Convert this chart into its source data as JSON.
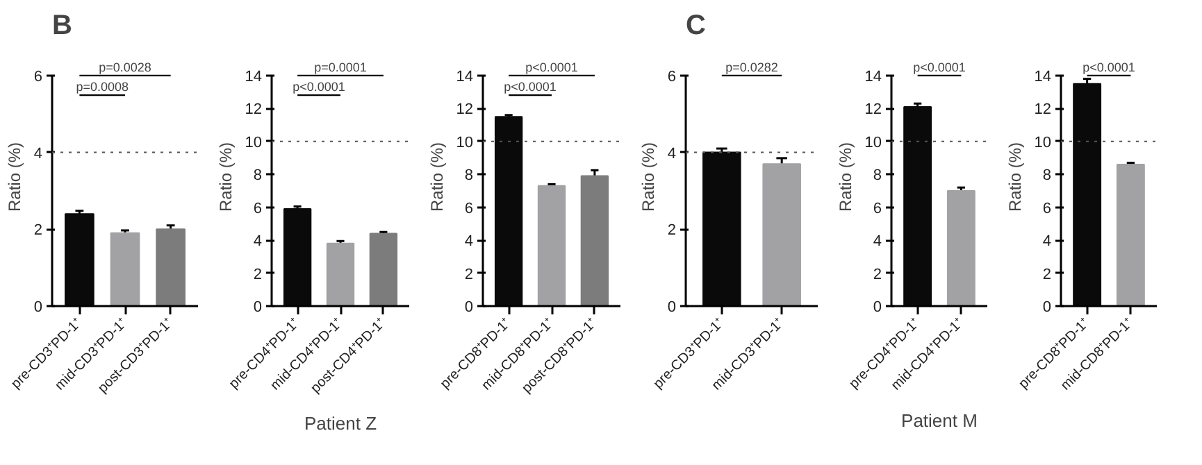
{
  "chart_data": [
    {
      "type": "bar",
      "title": "B",
      "ylabel": "Ratio (%)",
      "categories": [
        "pre-CD3⁺PD-1⁺",
        "mid-CD3⁺PD-1⁺",
        "post-CD3⁺PD-1⁺"
      ],
      "values": [
        2.4,
        1.9,
        2.0
      ],
      "errors": [
        0.08,
        0.07,
        0.1
      ],
      "colors": [
        "#0a0a0a",
        "#a2a2a4",
        "#7c7c7c"
      ],
      "ylim": [
        0,
        6
      ],
      "yticks": [
        0,
        2,
        4,
        6
      ],
      "ref_lines": [
        {
          "axis": "y",
          "value": 4,
          "line_style": "dotted",
          "color": "#555555"
        }
      ],
      "annotations": [
        "p=0.0028",
        "p=0.0008"
      ],
      "grid": false
    },
    {
      "type": "bar",
      "xlabel": "Patient Z",
      "ylabel": "Ratio (%)",
      "categories": [
        "pre-CD4⁺PD-1⁺",
        "mid-CD4⁺PD-1⁺",
        "post-CD4⁺PD-1⁺"
      ],
      "values": [
        5.9,
        3.8,
        4.4
      ],
      "errors": [
        0.15,
        0.15,
        0.1
      ],
      "colors": [
        "#0a0a0a",
        "#a2a2a4",
        "#7c7c7c"
      ],
      "ylim": [
        0,
        14
      ],
      "yticks": [
        0,
        2,
        4,
        6,
        8,
        10,
        12,
        14
      ],
      "ref_lines": [
        {
          "axis": "y",
          "value": 10,
          "line_style": "dotted",
          "color": "#555555"
        }
      ],
      "annotations": [
        "p=0.0001",
        "p<0.0001"
      ],
      "grid": false
    },
    {
      "type": "bar",
      "ylabel": "Ratio (%)",
      "categories": [
        "pre-CD8⁺PD-1⁺",
        "mid-CD8⁺PD-1⁺",
        "post-CD8⁺PD-1⁺"
      ],
      "values": [
        11.5,
        7.3,
        7.9
      ],
      "errors": [
        0.1,
        0.1,
        0.35
      ],
      "colors": [
        "#0a0a0a",
        "#a2a2a4",
        "#7c7c7c"
      ],
      "ylim": [
        0,
        14
      ],
      "yticks": [
        0,
        2,
        4,
        6,
        8,
        10,
        12,
        14
      ],
      "ref_lines": [
        {
          "axis": "y",
          "value": 10,
          "line_style": "dotted",
          "color": "#555555"
        }
      ],
      "annotations": [
        "p<0.0001",
        "p<0.0001"
      ],
      "grid": false
    },
    {
      "type": "bar",
      "title": "C",
      "ylabel": "Ratio (%)",
      "categories": [
        "pre-CD3⁺PD-1⁺",
        "mid-CD3⁺PD-1⁺"
      ],
      "values": [
        4.0,
        3.7
      ],
      "errors": [
        0.1,
        0.15
      ],
      "colors": [
        "#0a0a0a",
        "#a2a2a4"
      ],
      "ylim": [
        0,
        6
      ],
      "yticks": [
        0,
        2,
        4,
        6
      ],
      "ref_lines": [
        {
          "axis": "y",
          "value": 4,
          "line_style": "dotted",
          "color": "#555555"
        }
      ],
      "annotations": [
        "p=0.0282"
      ],
      "grid": false
    },
    {
      "type": "bar",
      "xlabel": "Patient M",
      "ylabel": "Ratio (%)",
      "categories": [
        "pre-CD4⁺PD-1⁺",
        "mid-CD4⁺PD-1⁺"
      ],
      "values": [
        12.1,
        7.0
      ],
      "errors": [
        0.2,
        0.2
      ],
      "colors": [
        "#0a0a0a",
        "#a2a2a4"
      ],
      "ylim": [
        0,
        14
      ],
      "yticks": [
        0,
        2,
        4,
        6,
        8,
        10,
        12,
        14
      ],
      "ref_lines": [
        {
          "axis": "y",
          "value": 10,
          "line_style": "dotted",
          "color": "#555555"
        }
      ],
      "annotations": [
        "p<0.0001"
      ],
      "grid": false
    },
    {
      "type": "bar",
      "ylabel": "Ratio (%)",
      "categories": [
        "pre-CD8⁺PD-1⁺",
        "mid-CD8⁺PD-1⁺"
      ],
      "values": [
        13.5,
        8.6
      ],
      "errors": [
        0.3,
        0.1
      ],
      "colors": [
        "#0a0a0a",
        "#a2a2a4"
      ],
      "ylim": [
        0,
        14
      ],
      "yticks": [
        0,
        2,
        4,
        6,
        8,
        10,
        12,
        14
      ],
      "ref_lines": [
        {
          "axis": "y",
          "value": 10,
          "line_style": "dotted",
          "color": "#555555"
        }
      ],
      "annotations": [
        "p<0.0001"
      ],
      "grid": false
    }
  ]
}
